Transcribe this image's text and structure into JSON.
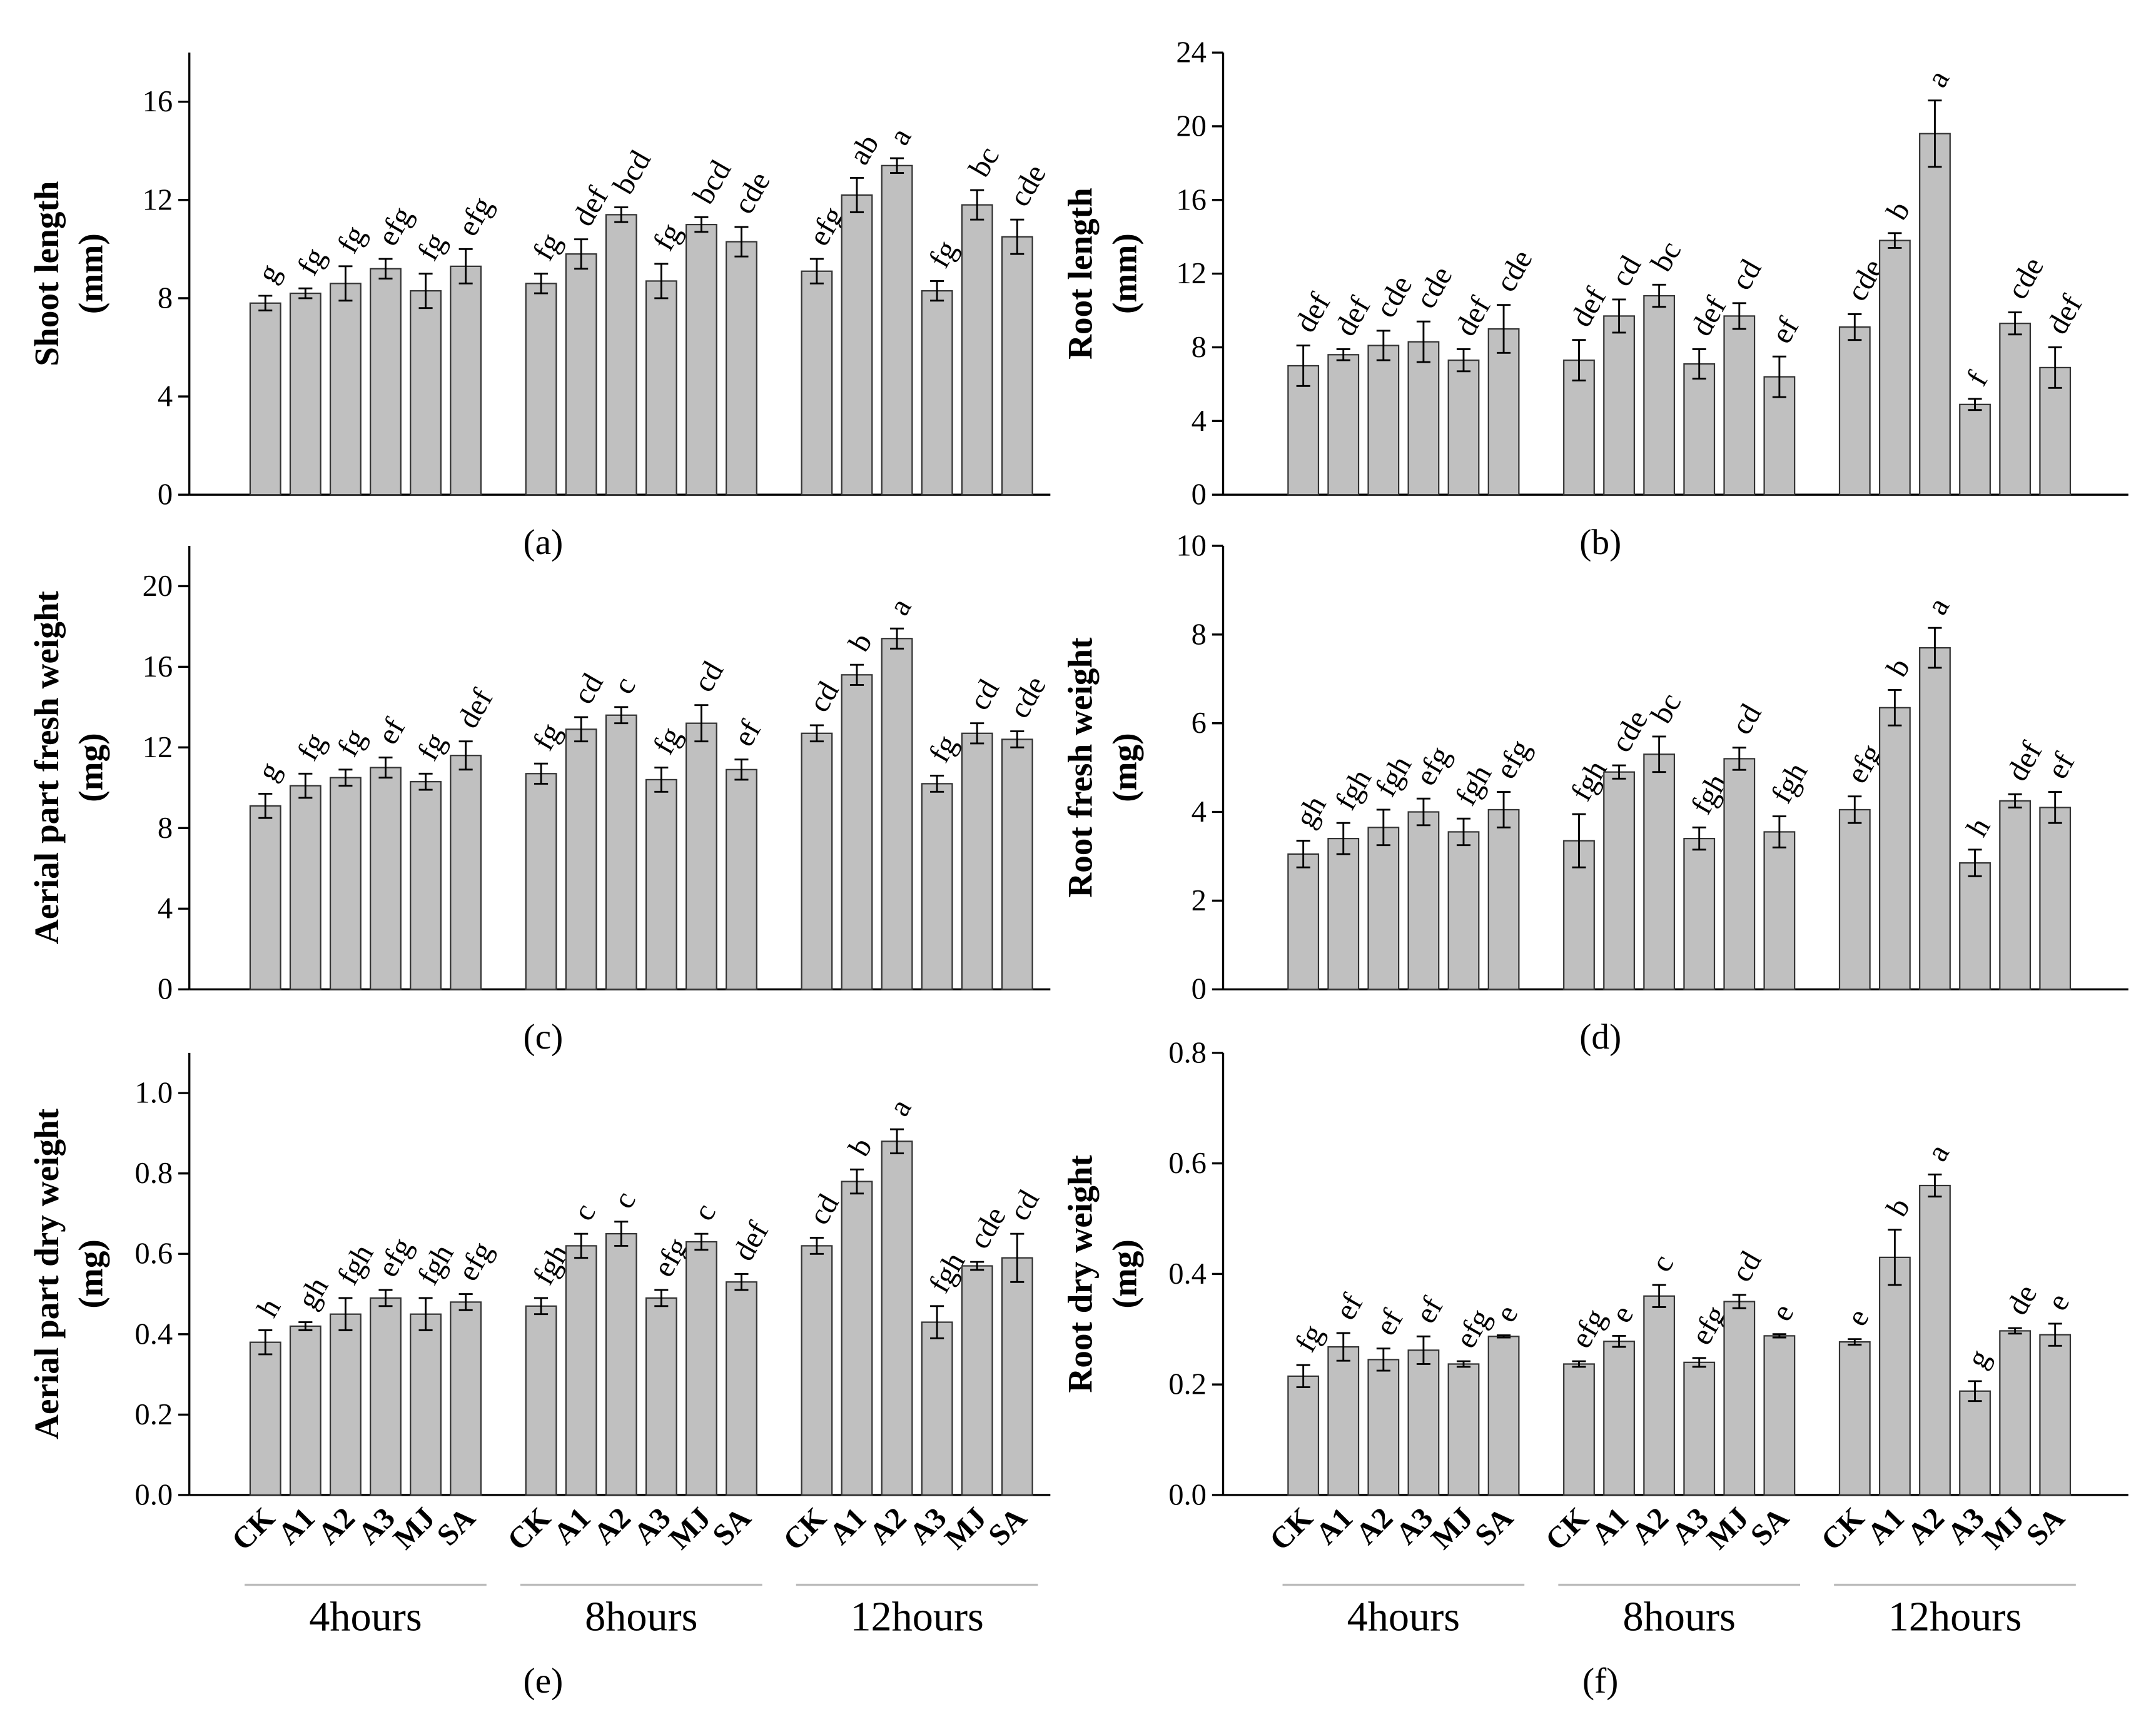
{
  "chart_data": [
    {
      "type": "bar",
      "panel_label": "(a)",
      "ylabel": "Shoot length",
      "yunit": "(mm)",
      "color": "#c0c0c0",
      "ylim": [
        0,
        18
      ],
      "yticks": [
        0,
        4,
        8,
        12,
        16
      ],
      "values": [
        7.8,
        8.2,
        8.6,
        9.2,
        8.3,
        9.3,
        8.6,
        9.8,
        11.4,
        8.7,
        11.0,
        10.3,
        9.1,
        12.2,
        13.4,
        8.3,
        11.8,
        10.5
      ],
      "errors": [
        0.3,
        0.2,
        0.7,
        0.4,
        0.7,
        0.7,
        0.4,
        0.6,
        0.3,
        0.7,
        0.3,
        0.6,
        0.5,
        0.7,
        0.3,
        0.4,
        0.6,
        0.7
      ],
      "annotations": [
        "g",
        "fg",
        "fg",
        "efg",
        "fg",
        "efg",
        "fg",
        "def",
        "bcd",
        "fg",
        "bcd",
        "cde",
        "efg",
        "ab",
        "a",
        "fg",
        "bc",
        "cde"
      ]
    },
    {
      "type": "bar",
      "panel_label": "(b)",
      "ylabel": "Root length",
      "yunit": "(mm)",
      "color": "#c0c0c0",
      "ylim": [
        0,
        24
      ],
      "yticks": [
        0,
        4,
        8,
        12,
        16,
        20,
        24
      ],
      "values": [
        7.0,
        7.6,
        8.1,
        8.3,
        7.3,
        9.0,
        7.3,
        9.7,
        10.8,
        7.1,
        9.7,
        6.4,
        9.1,
        13.8,
        19.6,
        4.9,
        9.3,
        6.9
      ],
      "errors": [
        1.1,
        0.3,
        0.8,
        1.1,
        0.6,
        1.3,
        1.1,
        0.9,
        0.6,
        0.8,
        0.7,
        1.1,
        0.7,
        0.4,
        1.8,
        0.3,
        0.6,
        1.1
      ],
      "annotations": [
        "def",
        "def",
        "cde",
        "cde",
        "def",
        "cde",
        "def",
        "cd",
        "bc",
        "def",
        "cd",
        "ef",
        "cde",
        "b",
        "a",
        "f",
        "cde",
        "def"
      ]
    },
    {
      "type": "bar",
      "panel_label": "(c)",
      "ylabel": "Aerial part fresh weight",
      "yunit": "(mg)",
      "color": "#c0c0c0",
      "ylim": [
        0,
        22
      ],
      "yticks": [
        0,
        4,
        8,
        12,
        16,
        20
      ],
      "values": [
        9.1,
        10.1,
        10.5,
        11.0,
        10.3,
        11.6,
        10.7,
        12.9,
        13.6,
        10.4,
        13.2,
        10.9,
        12.7,
        15.6,
        17.4,
        10.2,
        12.7,
        12.4
      ],
      "errors": [
        0.6,
        0.6,
        0.4,
        0.5,
        0.4,
        0.7,
        0.5,
        0.6,
        0.4,
        0.6,
        0.9,
        0.5,
        0.4,
        0.5,
        0.5,
        0.4,
        0.5,
        0.4
      ],
      "annotations": [
        "g",
        "fg",
        "fg",
        "ef",
        "fg",
        "def",
        "fg",
        "cd",
        "c",
        "fg",
        "cd",
        "ef",
        "cd",
        "b",
        "a",
        "fg",
        "cd",
        "cde"
      ]
    },
    {
      "type": "bar",
      "panel_label": "(d)",
      "ylabel": "Root fresh weight",
      "yunit": "(mg)",
      "color": "#c0c0c0",
      "ylim": [
        0,
        10
      ],
      "yticks": [
        0,
        2,
        4,
        6,
        8,
        10
      ],
      "values": [
        3.05,
        3.4,
        3.65,
        4.0,
        3.55,
        4.05,
        3.35,
        4.9,
        5.3,
        3.4,
        5.2,
        3.55,
        4.05,
        6.35,
        7.7,
        2.85,
        4.25,
        4.1
      ],
      "errors": [
        0.3,
        0.35,
        0.4,
        0.3,
        0.3,
        0.4,
        0.6,
        0.15,
        0.4,
        0.25,
        0.25,
        0.35,
        0.3,
        0.4,
        0.45,
        0.3,
        0.15,
        0.35
      ],
      "annotations": [
        "gh",
        "fgh",
        "fgh",
        "efg",
        "fgh",
        "efg",
        "fgh",
        "cde",
        "bc",
        "fgh",
        "cd",
        "fgh",
        "efg",
        "b",
        "a",
        "h",
        "def",
        "ef"
      ]
    },
    {
      "type": "bar",
      "panel_label": "(e)",
      "ylabel": "Aerial part dry weight",
      "yunit": "(mg)",
      "color": "#c0c0c0",
      "ylim": [
        0,
        1.1
      ],
      "yticks": [
        {
          "value": 0,
          "label": "0.0"
        },
        0.2,
        0.4,
        0.6,
        0.8,
        {
          "value": 1,
          "label": "1.0"
        }
      ],
      "categories": [
        "CK",
        "A1",
        "A2",
        "A3",
        "MJ",
        "SA",
        "CK",
        "A1",
        "A2",
        "A3",
        "MJ",
        "SA",
        "CK",
        "A1",
        "A2",
        "A3",
        "MJ",
        "SA"
      ],
      "groups": [
        "4hours",
        "8hours",
        "12hours"
      ],
      "values": [
        0.38,
        0.42,
        0.45,
        0.49,
        0.45,
        0.48,
        0.47,
        0.62,
        0.65,
        0.49,
        0.63,
        0.53,
        0.62,
        0.78,
        0.88,
        0.43,
        0.57,
        0.59
      ],
      "errors": [
        0.03,
        0.01,
        0.04,
        0.02,
        0.04,
        0.02,
        0.02,
        0.03,
        0.03,
        0.02,
        0.02,
        0.02,
        0.02,
        0.03,
        0.03,
        0.04,
        0.01,
        0.06
      ],
      "annotations": [
        "h",
        "gh",
        "fgh",
        "efg",
        "fgh",
        "efg",
        "fgh",
        "c",
        "c",
        "efg",
        "c",
        "def",
        "cd",
        "b",
        "a",
        "fgh",
        "cde",
        "cd"
      ]
    },
    {
      "type": "bar",
      "panel_label": "(f)",
      "ylabel": "Root dry weight",
      "yunit": "(mg)",
      "color": "#c0c0c0",
      "ylim": [
        0,
        0.8
      ],
      "yticks": [
        {
          "value": 0,
          "label": "0.0"
        },
        0.2,
        0.4,
        0.6,
        0.8
      ],
      "categories": [
        "CK",
        "A1",
        "A2",
        "A3",
        "MJ",
        "SA",
        "CK",
        "A1",
        "A2",
        "A3",
        "MJ",
        "SA",
        "CK",
        "A1",
        "A2",
        "A3",
        "MJ",
        "SA"
      ],
      "groups": [
        "4hours",
        "8hours",
        "12hours"
      ],
      "values": [
        0.215,
        0.268,
        0.245,
        0.262,
        0.237,
        0.287,
        0.237,
        0.278,
        0.36,
        0.24,
        0.35,
        0.288,
        0.277,
        0.43,
        0.56,
        0.188,
        0.297,
        0.29
      ],
      "errors": [
        0.02,
        0.025,
        0.02,
        0.025,
        0.005,
        0.002,
        0.005,
        0.01,
        0.02,
        0.008,
        0.012,
        0.003,
        0.005,
        0.05,
        0.02,
        0.018,
        0.005,
        0.02
      ],
      "annotations": [
        "fg",
        "ef",
        "ef",
        "ef",
        "efg",
        "e",
        "efg",
        "e",
        "c",
        "efg",
        "cd",
        "e",
        "e",
        "b",
        "a",
        "g",
        "de",
        "e"
      ]
    }
  ]
}
